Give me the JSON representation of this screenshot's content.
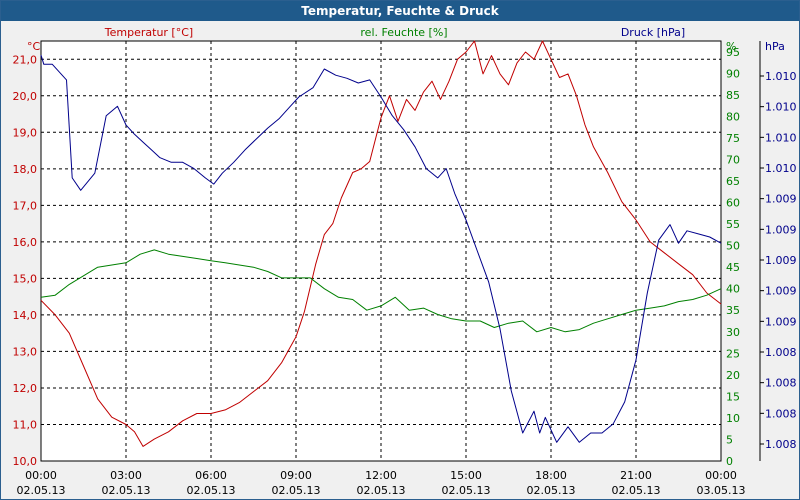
{
  "window": {
    "title": "Temperatur, Feuchte & Druck"
  },
  "colors": {
    "temperature": "#c00000",
    "humidity": "#008000",
    "pressure": "#00008b",
    "titlebar": "#1f5a8b"
  },
  "chart_data": {
    "type": "line",
    "title": "Temperatur, Feuchte & Druck",
    "x_labels": [
      {
        "t": 0,
        "time": "00:00",
        "date": "02.05.13"
      },
      {
        "t": 3,
        "time": "03:00",
        "date": "02.05.13"
      },
      {
        "t": 6,
        "time": "06:00",
        "date": "02.05.13"
      },
      {
        "t": 9,
        "time": "09:00",
        "date": "02.05.13"
      },
      {
        "t": 12,
        "time": "12:00",
        "date": "02.05.13"
      },
      {
        "t": 15,
        "time": "15:00",
        "date": "02.05.13"
      },
      {
        "t": 18,
        "time": "18:00",
        "date": "02.05.13"
      },
      {
        "t": 21,
        "time": "21:00",
        "date": "02.05.13"
      },
      {
        "t": 24,
        "time": "00:00",
        "date": "03.05.13"
      }
    ],
    "xlim": [
      0,
      24
    ],
    "grid": true,
    "axes": {
      "temperature": {
        "unit": "°C",
        "legend": "Temperatur [°C]",
        "ylim": [
          10,
          21.5
        ],
        "ticks": [
          "10,0",
          "11,0",
          "12,0",
          "13,0",
          "14,0",
          "15,0",
          "16,0",
          "17,0",
          "18,0",
          "19,0",
          "20,0",
          "21,0"
        ]
      },
      "humidity": {
        "unit": "%",
        "legend": "rel. Feuchte [%]",
        "ylim": [
          0,
          97.5
        ],
        "ticks": [
          "0",
          "5",
          "10",
          "15",
          "20",
          "25",
          "30",
          "35",
          "40",
          "45",
          "50",
          "55",
          "60",
          "65",
          "70",
          "75",
          "80",
          "85",
          "90",
          "95"
        ]
      },
      "pressure": {
        "unit": "hPa",
        "legend": "Druck [hPa]",
        "ylim": [
          1007.9,
          1010.6
        ],
        "ticks": [
          "1.008",
          "1.008",
          "1.008",
          "1.008",
          "1.009",
          "1.009",
          "1.009",
          "1.009",
          "1.009",
          "1.010",
          "1.010",
          "1.010",
          "1.010"
        ]
      }
    },
    "series": [
      {
        "name": "Temperatur [°C]",
        "axis": "temperature",
        "color": "#c00000",
        "x": [
          0,
          0.5,
          1,
          1.5,
          2,
          2.5,
          3,
          3.3,
          3.6,
          4,
          4.5,
          5,
          5.5,
          6,
          6.5,
          7,
          7.5,
          8,
          8.5,
          9,
          9.3,
          9.7,
          10,
          10.3,
          10.6,
          11,
          11.3,
          11.6,
          12,
          12.3,
          12.6,
          12.9,
          13.2,
          13.5,
          13.8,
          14.1,
          14.4,
          14.7,
          15,
          15.3,
          15.6,
          15.9,
          16.2,
          16.5,
          16.8,
          17.1,
          17.4,
          17.7,
          18,
          18.3,
          18.6,
          18.9,
          19.2,
          19.5,
          20,
          20.5,
          21,
          21.5,
          22,
          22.5,
          23,
          23.5,
          24
        ],
        "y": [
          14.4,
          14.0,
          13.5,
          12.6,
          11.7,
          11.2,
          11.0,
          10.8,
          10.4,
          10.6,
          10.8,
          11.1,
          11.3,
          11.3,
          11.4,
          11.6,
          11.9,
          12.2,
          12.7,
          13.4,
          14.1,
          15.4,
          16.2,
          16.5,
          17.2,
          17.9,
          18.0,
          18.2,
          19.4,
          20.0,
          19.3,
          19.9,
          19.6,
          20.1,
          20.4,
          19.9,
          20.4,
          21.0,
          21.2,
          21.5,
          20.6,
          21.1,
          20.6,
          20.3,
          20.9,
          21.2,
          21.0,
          21.5,
          21.0,
          20.5,
          20.6,
          20.0,
          19.2,
          18.6,
          17.9,
          17.1,
          16.6,
          16.0,
          15.7,
          15.4,
          15.1,
          14.6,
          14.3
        ]
      },
      {
        "name": "rel. Feuchte [%]",
        "axis": "humidity",
        "color": "#008000",
        "x": [
          0,
          0.5,
          1,
          1.5,
          2,
          2.5,
          3,
          3.5,
          4,
          4.5,
          5,
          5.5,
          6,
          6.5,
          7,
          7.5,
          8,
          8.5,
          9,
          9.5,
          10,
          10.5,
          11,
          11.5,
          12,
          12.5,
          13,
          13.5,
          14,
          14.5,
          15,
          15.5,
          16,
          16.5,
          17,
          17.5,
          18,
          18.5,
          19,
          19.5,
          20,
          20.5,
          21,
          21.5,
          22,
          22.5,
          23,
          23.5,
          24
        ],
        "y": [
          38,
          38.5,
          41,
          43,
          45,
          45.5,
          46,
          48,
          49,
          48,
          47.5,
          47,
          46.5,
          46,
          45.5,
          45,
          44,
          42.5,
          42.5,
          42.5,
          40,
          38,
          37.5,
          35,
          36,
          38,
          35,
          35.5,
          34,
          33,
          32.5,
          32.5,
          31,
          32,
          32.5,
          30,
          31,
          30,
          30.5,
          32,
          33,
          34,
          35,
          35.5,
          36,
          37,
          37.5,
          38.5,
          40
        ]
      },
      {
        "name": "Druck [hPa]",
        "axis": "pressure",
        "color": "#00008b",
        "x": [
          0,
          0.1,
          0.4,
          0.9,
          1.1,
          1.4,
          1.9,
          2.3,
          2.7,
          3.0,
          3.3,
          3.6,
          3.9,
          4.2,
          4.6,
          5.0,
          5.4,
          5.8,
          6.1,
          6.4,
          6.8,
          7.2,
          7.6,
          8.0,
          8.4,
          8.8,
          9.1,
          9.6,
          10.0,
          10.4,
          10.8,
          11.2,
          11.6,
          12.0,
          12.4,
          12.8,
          13.2,
          13.6,
          14.0,
          14.3,
          14.6,
          15.0,
          15.4,
          15.8,
          16.2,
          16.6,
          17.0,
          17.4,
          17.6,
          17.8,
          18.2,
          18.6,
          19.0,
          19.4,
          19.8,
          20.2,
          20.6,
          21.0,
          21.4,
          21.8,
          22.2,
          22.5,
          22.8,
          23.2,
          23.6,
          24
        ],
        "y": [
          1010.51,
          1010.45,
          1010.45,
          1010.35,
          1009.72,
          1009.64,
          1009.75,
          1010.12,
          1010.18,
          1010.06,
          1010.0,
          1009.95,
          1009.9,
          1009.85,
          1009.82,
          1009.82,
          1009.78,
          1009.72,
          1009.68,
          1009.75,
          1009.82,
          1009.9,
          1009.97,
          1010.04,
          1010.1,
          1010.18,
          1010.24,
          1010.3,
          1010.42,
          1010.38,
          1010.36,
          1010.33,
          1010.35,
          1010.24,
          1010.12,
          1010.03,
          1009.92,
          1009.78,
          1009.72,
          1009.78,
          1009.62,
          1009.45,
          1009.25,
          1009.05,
          1008.75,
          1008.35,
          1008.08,
          1008.22,
          1008.08,
          1008.18,
          1008.02,
          1008.12,
          1008.02,
          1008.08,
          1008.08,
          1008.14,
          1008.28,
          1008.55,
          1008.98,
          1009.32,
          1009.42,
          1009.3,
          1009.38,
          1009.36,
          1009.34,
          1009.3
        ]
      }
    ]
  }
}
